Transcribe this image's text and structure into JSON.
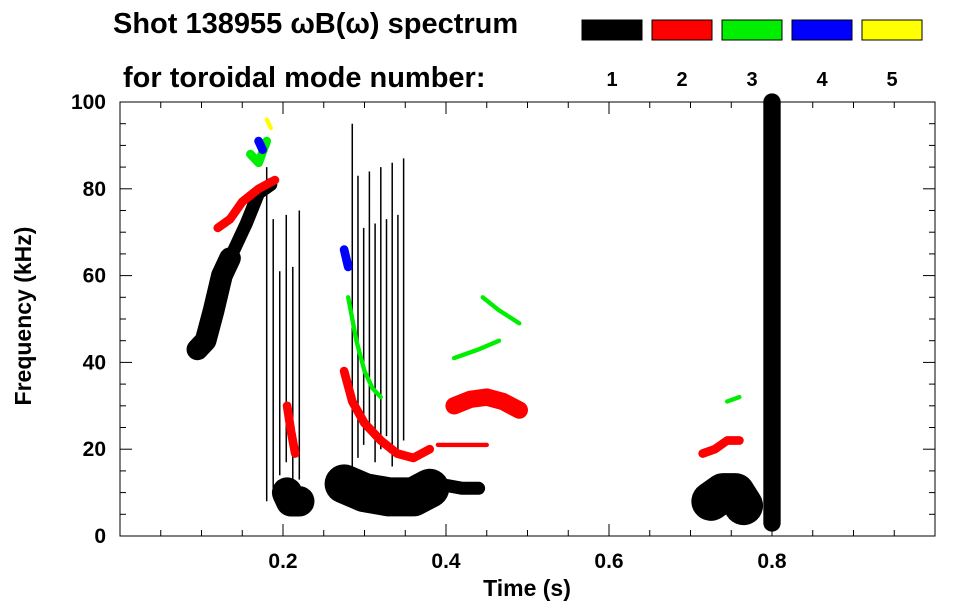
{
  "chart_data": {
    "type": "heatmap",
    "title_line1": "Shot 138955 ωB(ω) spectrum",
    "title_line2": "for toroidal mode number:",
    "xlabel": "Time (s)",
    "ylabel": "Frequency (kHz)",
    "xlim": [
      0.0,
      1.0
    ],
    "ylim": [
      0,
      100
    ],
    "x_ticks": [
      0.2,
      0.4,
      0.6,
      0.8
    ],
    "x_tick_labels": [
      "0.2",
      "0.4",
      "0.6",
      "0.8"
    ],
    "y_ticks": [
      0,
      20,
      40,
      60,
      80,
      100
    ],
    "y_tick_labels": [
      "0",
      "20",
      "40",
      "60",
      "80",
      "100"
    ],
    "grid": false,
    "legend_placement": "top-right",
    "legend": [
      {
        "label": "1",
        "color": "#000000"
      },
      {
        "label": "2",
        "color": "#ff0000"
      },
      {
        "label": "3",
        "color": "#00ee00"
      },
      {
        "label": "4",
        "color": "#0000ff"
      },
      {
        "label": "5",
        "color": "#ffff00"
      }
    ],
    "series": [
      {
        "mode": 1,
        "color": "#000000",
        "traces": [
          {
            "kind": "band",
            "points": [
              [
                0.095,
                43
              ],
              [
                0.105,
                45
              ],
              [
                0.115,
                52
              ],
              [
                0.125,
                60
              ],
              [
                0.135,
                64
              ]
            ],
            "width": 5
          },
          {
            "kind": "band",
            "points": [
              [
                0.14,
                66
              ],
              [
                0.155,
                72
              ],
              [
                0.17,
                79
              ],
              [
                0.185,
                81
              ]
            ],
            "width": 3
          },
          {
            "kind": "band",
            "points": [
              [
                0.205,
                10
              ],
              [
                0.21,
                8
              ],
              [
                0.22,
                8
              ]
            ],
            "width": 7
          },
          {
            "kind": "band",
            "points": [
              [
                0.275,
                12
              ],
              [
                0.3,
                10
              ],
              [
                0.33,
                9
              ],
              [
                0.36,
                9
              ],
              [
                0.38,
                11
              ]
            ],
            "width": 9
          },
          {
            "kind": "band",
            "points": [
              [
                0.39,
                12
              ],
              [
                0.42,
                11
              ],
              [
                0.44,
                11
              ]
            ],
            "width": 3
          },
          {
            "kind": "band",
            "points": [
              [
                0.725,
                8
              ],
              [
                0.74,
                10
              ],
              [
                0.755,
                10
              ],
              [
                0.765,
                7
              ]
            ],
            "width": 9
          },
          {
            "kind": "band",
            "points": [
              [
                0.8,
                3
              ],
              [
                0.8,
                30
              ],
              [
                0.8,
                55
              ],
              [
                0.8,
                75
              ],
              [
                0.8,
                100
              ]
            ],
            "width": 4
          },
          {
            "kind": "vlines",
            "t_from": 0.18,
            "t_to": 0.22,
            "step": 0.008,
            "f_from": 8,
            "f_to": 85
          },
          {
            "kind": "vlines",
            "t_from": 0.285,
            "t_to": 0.35,
            "step": 0.007,
            "f_from": 15,
            "f_to": 95
          }
        ]
      },
      {
        "mode": 2,
        "color": "#ff0000",
        "traces": [
          {
            "kind": "band",
            "points": [
              [
                0.12,
                71
              ],
              [
                0.135,
                73
              ],
              [
                0.15,
                77
              ],
              [
                0.17,
                80
              ],
              [
                0.19,
                82
              ]
            ],
            "width": 2
          },
          {
            "kind": "band",
            "points": [
              [
                0.205,
                30
              ],
              [
                0.21,
                24
              ],
              [
                0.215,
                19
              ]
            ],
            "width": 2
          },
          {
            "kind": "band",
            "points": [
              [
                0.275,
                38
              ],
              [
                0.285,
                31
              ],
              [
                0.3,
                26
              ],
              [
                0.32,
                22
              ],
              [
                0.34,
                19
              ],
              [
                0.36,
                18
              ],
              [
                0.38,
                20
              ]
            ],
            "width": 2
          },
          {
            "kind": "band",
            "points": [
              [
                0.39,
                21
              ],
              [
                0.42,
                21
              ],
              [
                0.45,
                21
              ]
            ],
            "width": 1
          },
          {
            "kind": "band",
            "points": [
              [
                0.41,
                30
              ],
              [
                0.43,
                31.5
              ],
              [
                0.45,
                32
              ],
              [
                0.47,
                31
              ],
              [
                0.49,
                29
              ]
            ],
            "width": 4
          },
          {
            "kind": "band",
            "points": [
              [
                0.715,
                19
              ],
              [
                0.73,
                20
              ],
              [
                0.745,
                22
              ],
              [
                0.76,
                22
              ]
            ],
            "width": 2
          }
        ]
      },
      {
        "mode": 3,
        "color": "#00ee00",
        "traces": [
          {
            "kind": "band",
            "points": [
              [
                0.16,
                88
              ],
              [
                0.17,
                86
              ],
              [
                0.18,
                91
              ]
            ],
            "width": 2
          },
          {
            "kind": "band",
            "points": [
              [
                0.28,
                55
              ],
              [
                0.29,
                45
              ],
              [
                0.3,
                38
              ],
              [
                0.31,
                34
              ],
              [
                0.32,
                32
              ]
            ],
            "width": 1
          },
          {
            "kind": "band",
            "points": [
              [
                0.41,
                41
              ],
              [
                0.44,
                43
              ],
              [
                0.465,
                45
              ]
            ],
            "width": 1
          },
          {
            "kind": "band",
            "points": [
              [
                0.445,
                55
              ],
              [
                0.465,
                52
              ],
              [
                0.49,
                49
              ]
            ],
            "width": 1
          },
          {
            "kind": "band",
            "points": [
              [
                0.745,
                31
              ],
              [
                0.76,
                32
              ]
            ],
            "width": 1
          }
        ]
      },
      {
        "mode": 4,
        "color": "#0000ff",
        "traces": [
          {
            "kind": "band",
            "points": [
              [
                0.17,
                91
              ],
              [
                0.175,
                89
              ]
            ],
            "width": 2
          },
          {
            "kind": "band",
            "points": [
              [
                0.275,
                66
              ],
              [
                0.28,
                62
              ]
            ],
            "width": 2
          }
        ]
      },
      {
        "mode": 5,
        "color": "#ffff00",
        "traces": [
          {
            "kind": "band",
            "points": [
              [
                0.18,
                96
              ],
              [
                0.185,
                94
              ]
            ],
            "width": 1
          }
        ]
      }
    ]
  }
}
